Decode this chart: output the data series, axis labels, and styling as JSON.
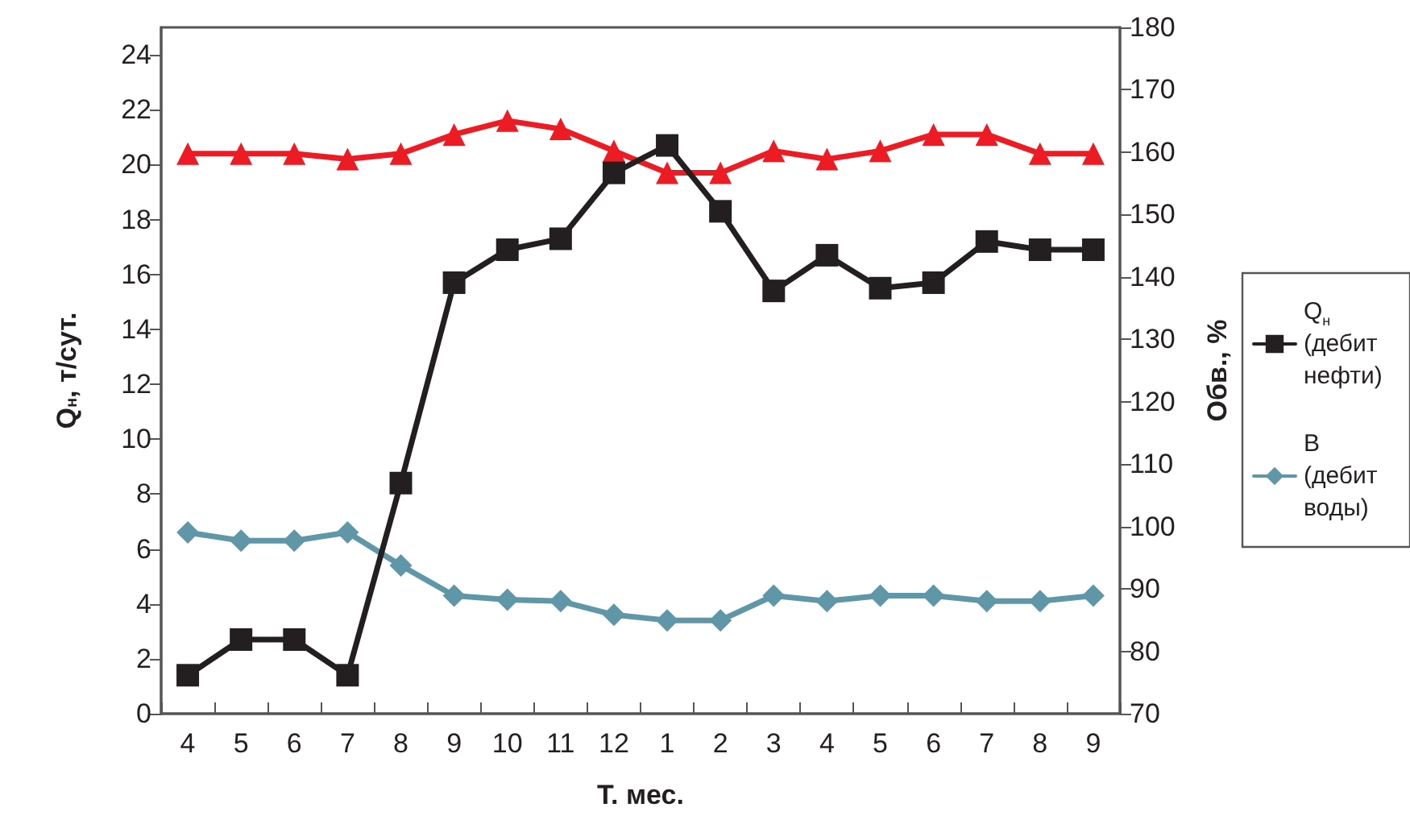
{
  "chart_data": {
    "type": "line",
    "xlabel": "Т. мес.",
    "ylabel": "Q$_{н}$, т/сут.",
    "y2label": "Обв., %",
    "categories": [
      "4",
      "5",
      "6",
      "7",
      "8",
      "9",
      "10",
      "11",
      "12",
      "1",
      "2",
      "3",
      "4",
      "5",
      "6",
      "7",
      "8",
      "9"
    ],
    "series": [
      {
        "name": "Q$_{н}$ (дебит нефти)",
        "color": "#231f20",
        "marker": "square",
        "values": [
          1.4,
          2.7,
          2.7,
          1.4,
          8.4,
          15.7,
          16.9,
          17.3,
          19.7,
          20.7,
          18.3,
          15.4,
          16.7,
          15.5,
          15.7,
          17.2,
          16.9,
          16.9
        ]
      },
      {
        "name": "В (дебит воды)",
        "color": "#5f97a8",
        "marker": "diamond",
        "values": [
          6.6,
          6.3,
          6.3,
          6.6,
          5.4,
          4.3,
          4.15,
          4.1,
          3.6,
          3.4,
          3.4,
          4.3,
          4.1,
          4.3,
          4.3,
          4.1,
          4.1,
          4.3
        ]
      },
      {
        "color": "#ed1c24",
        "marker": "triangle",
        "values": [
          20.4,
          20.4,
          20.4,
          20.2,
          20.4,
          21.1,
          21.6,
          21.3,
          20.5,
          19.7,
          19.7,
          20.5,
          20.2,
          20.5,
          21.1,
          21.1,
          20.4,
          20.4
        ]
      }
    ],
    "ylim": [
      0,
      25
    ],
    "yticks": [
      0,
      2,
      4,
      6,
      8,
      10,
      12,
      14,
      16,
      18,
      20,
      22,
      24
    ],
    "y2lim": [
      70,
      180
    ],
    "y2ticks": [
      70,
      80,
      90,
      100,
      110,
      120,
      130,
      140,
      150,
      160,
      170,
      180
    ],
    "grid": false,
    "legend": "right",
    "line_style": "solid"
  }
}
